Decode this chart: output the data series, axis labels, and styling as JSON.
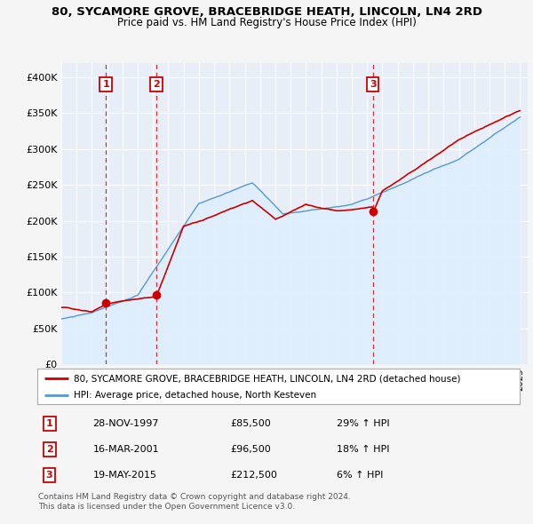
{
  "title": "80, SYCAMORE GROVE, BRACEBRIDGE HEATH, LINCOLN, LN4 2RD",
  "subtitle": "Price paid vs. HM Land Registry's House Price Index (HPI)",
  "ylim": [
    0,
    420000
  ],
  "yticks": [
    0,
    50000,
    100000,
    150000,
    200000,
    250000,
    300000,
    350000,
    400000
  ],
  "ytick_labels": [
    "£0",
    "£50K",
    "£100K",
    "£150K",
    "£200K",
    "£250K",
    "£300K",
    "£350K",
    "£400K"
  ],
  "sales": [
    {
      "label": "1",
      "date_num": 1997.91,
      "price": 85500,
      "pct": "29%",
      "date_str": "28-NOV-1997"
    },
    {
      "label": "2",
      "date_num": 2001.21,
      "price": 96500,
      "pct": "18%",
      "date_str": "16-MAR-2001"
    },
    {
      "label": "3",
      "date_num": 2015.38,
      "price": 212500,
      "pct": "6%",
      "date_str": "19-MAY-2015"
    }
  ],
  "line_color_property": "#cc0000",
  "line_color_hpi": "#5599cc",
  "fill_color_hpi": "#ddeeff",
  "legend_property": "80, SYCAMORE GROVE, BRACEBRIDGE HEATH, LINCOLN, LN4 2RD (detached house)",
  "legend_hpi": "HPI: Average price, detached house, North Kesteven",
  "footer1": "Contains HM Land Registry data © Crown copyright and database right 2024.",
  "footer2": "This data is licensed under the Open Government Licence v3.0.",
  "bg_color": "#f5f5f5",
  "plot_bg": "#e8eef8",
  "grid_color": "#ffffff"
}
